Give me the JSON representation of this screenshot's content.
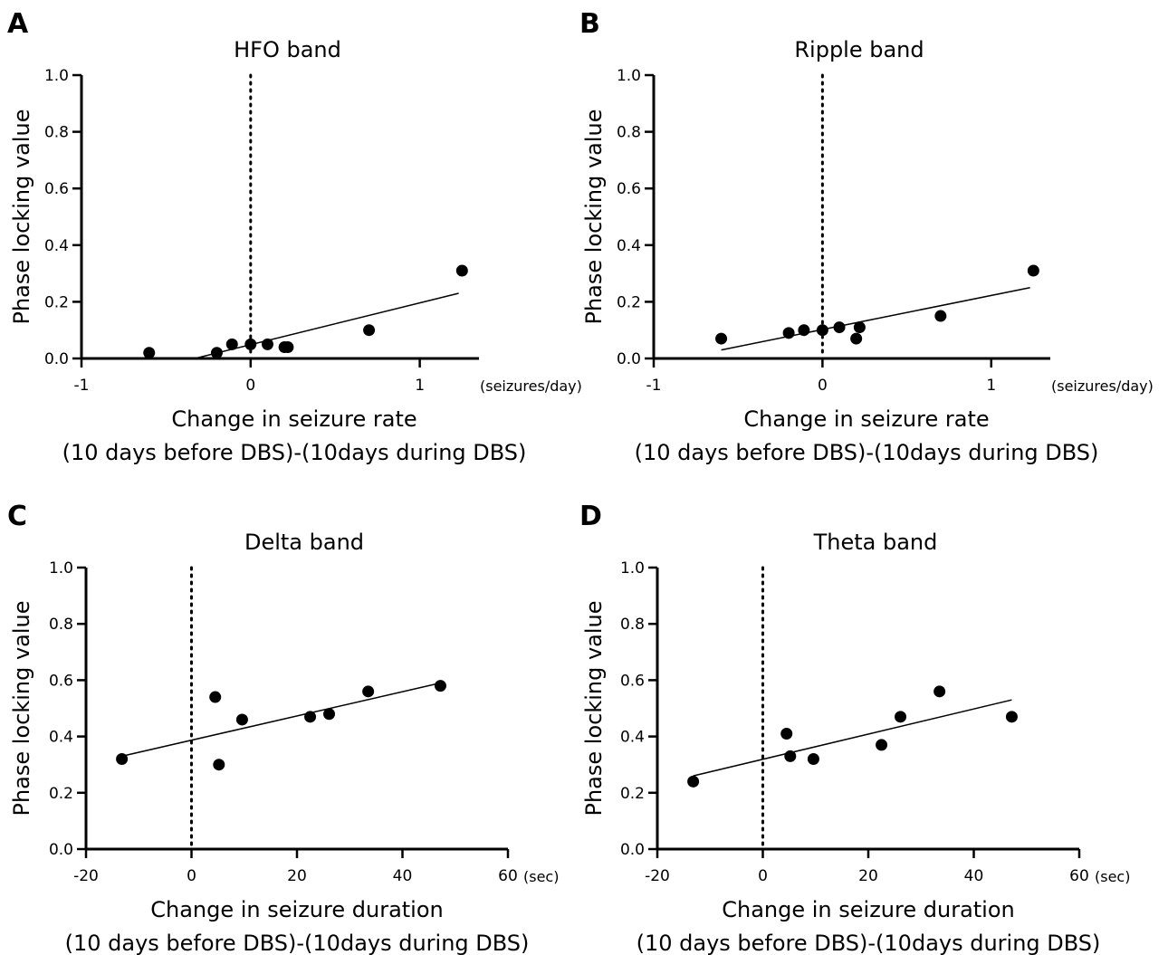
{
  "chart_data": [
    {
      "id": "A",
      "type": "scatter",
      "panel_label": "A",
      "title": "HFO band",
      "ylabel": "Phase locking value",
      "xlabel_lines": [
        "Change in seizure rate",
        "(10 days before DBS)-(10days during DBS)"
      ],
      "x_unit": "(seizures/day)",
      "xlim": [
        -1,
        1.35
      ],
      "ylim": [
        0,
        1.0
      ],
      "x_ticks": [
        -1,
        0,
        1
      ],
      "x_tick_labels": [
        "-1",
        "0",
        "1"
      ],
      "y_ticks": [
        0,
        0.2,
        0.4,
        0.6,
        0.8,
        1.0
      ],
      "y_tick_labels": [
        "0.0",
        "0.2",
        "0.4",
        "0.6",
        "0.8",
        "1.0"
      ],
      "reference_line_x": 0,
      "points": [
        {
          "x": -0.6,
          "y": 0.02
        },
        {
          "x": -0.2,
          "y": 0.02
        },
        {
          "x": -0.11,
          "y": 0.05
        },
        {
          "x": 0.0,
          "y": 0.05
        },
        {
          "x": 0.1,
          "y": 0.05
        },
        {
          "x": 0.2,
          "y": 0.04
        },
        {
          "x": 0.22,
          "y": 0.04
        },
        {
          "x": 0.7,
          "y": 0.1
        },
        {
          "x": 1.25,
          "y": 0.31
        }
      ],
      "fit_line": {
        "x": [
          -0.33,
          1.23
        ],
        "y": [
          0.0,
          0.23
        ]
      }
    },
    {
      "id": "B",
      "type": "scatter",
      "panel_label": "B",
      "title": "Ripple band",
      "ylabel": "Phase locking value",
      "xlabel_lines": [
        "Change in seizure rate",
        "(10 days before DBS)-(10days during DBS)"
      ],
      "x_unit": "(seizures/day)",
      "xlim": [
        -1,
        1.35
      ],
      "ylim": [
        0,
        1.0
      ],
      "x_ticks": [
        -1,
        0,
        1
      ],
      "x_tick_labels": [
        "-1",
        "0",
        "1"
      ],
      "y_ticks": [
        0,
        0.2,
        0.4,
        0.6,
        0.8,
        1.0
      ],
      "y_tick_labels": [
        "0.0",
        "0.2",
        "0.4",
        "0.6",
        "0.8",
        "1.0"
      ],
      "reference_line_x": 0,
      "points": [
        {
          "x": -0.6,
          "y": 0.07
        },
        {
          "x": -0.2,
          "y": 0.09
        },
        {
          "x": -0.11,
          "y": 0.1
        },
        {
          "x": 0.0,
          "y": 0.1
        },
        {
          "x": 0.1,
          "y": 0.11
        },
        {
          "x": 0.2,
          "y": 0.07
        },
        {
          "x": 0.22,
          "y": 0.11
        },
        {
          "x": 0.7,
          "y": 0.15
        },
        {
          "x": 1.25,
          "y": 0.31
        }
      ],
      "fit_line": {
        "x": [
          -0.6,
          1.23
        ],
        "y": [
          0.03,
          0.25
        ]
      }
    },
    {
      "id": "C",
      "type": "scatter",
      "panel_label": "C",
      "title": "Delta band",
      "ylabel": "Phase locking value",
      "xlabel_lines": [
        "Change in seizure duration",
        "(10 days before DBS)-(10days during DBS)"
      ],
      "x_unit": "(sec)",
      "xlim": [
        -20,
        60
      ],
      "ylim": [
        0,
        1.0
      ],
      "x_ticks": [
        -20,
        0,
        20,
        40,
        60
      ],
      "x_tick_labels": [
        "-20",
        "0",
        "20",
        "40",
        "60"
      ],
      "y_ticks": [
        0,
        0.2,
        0.4,
        0.6,
        0.8,
        1.0
      ],
      "y_tick_labels": [
        "0.0",
        "0.2",
        "0.4",
        "0.6",
        "0.8",
        "1.0"
      ],
      "reference_line_x": 0,
      "points": [
        {
          "x": -13.2,
          "y": 0.32
        },
        {
          "x": 4.5,
          "y": 0.54
        },
        {
          "x": 5.2,
          "y": 0.3
        },
        {
          "x": 9.6,
          "y": 0.46
        },
        {
          "x": 22.5,
          "y": 0.47
        },
        {
          "x": 26.1,
          "y": 0.48
        },
        {
          "x": 33.5,
          "y": 0.56
        },
        {
          "x": 47.2,
          "y": 0.58
        }
      ],
      "fit_line": {
        "x": [
          -13.2,
          47.2
        ],
        "y": [
          0.33,
          0.59
        ]
      }
    },
    {
      "id": "D",
      "type": "scatter",
      "panel_label": "D",
      "title": "Theta band",
      "ylabel": "Phase locking value",
      "xlabel_lines": [
        "Change in seizure duration",
        "(10 days before DBS)-(10days during DBS)"
      ],
      "x_unit": "(sec)",
      "xlim": [
        -20,
        60
      ],
      "ylim": [
        0,
        1.0
      ],
      "x_ticks": [
        -20,
        0,
        20,
        40,
        60
      ],
      "x_tick_labels": [
        "-20",
        "0",
        "20",
        "40",
        "60"
      ],
      "y_ticks": [
        0,
        0.2,
        0.4,
        0.6,
        0.8,
        1.0
      ],
      "y_tick_labels": [
        "0.0",
        "0.2",
        "0.4",
        "0.6",
        "0.8",
        "1.0"
      ],
      "reference_line_x": 0,
      "points": [
        {
          "x": -13.2,
          "y": 0.24
        },
        {
          "x": 4.5,
          "y": 0.41
        },
        {
          "x": 5.2,
          "y": 0.33
        },
        {
          "x": 9.6,
          "y": 0.32
        },
        {
          "x": 22.5,
          "y": 0.37
        },
        {
          "x": 26.1,
          "y": 0.47
        },
        {
          "x": 33.5,
          "y": 0.56
        },
        {
          "x": 47.2,
          "y": 0.47
        }
      ],
      "fit_line": {
        "x": [
          -13.2,
          47.2
        ],
        "y": [
          0.26,
          0.53
        ]
      }
    }
  ]
}
